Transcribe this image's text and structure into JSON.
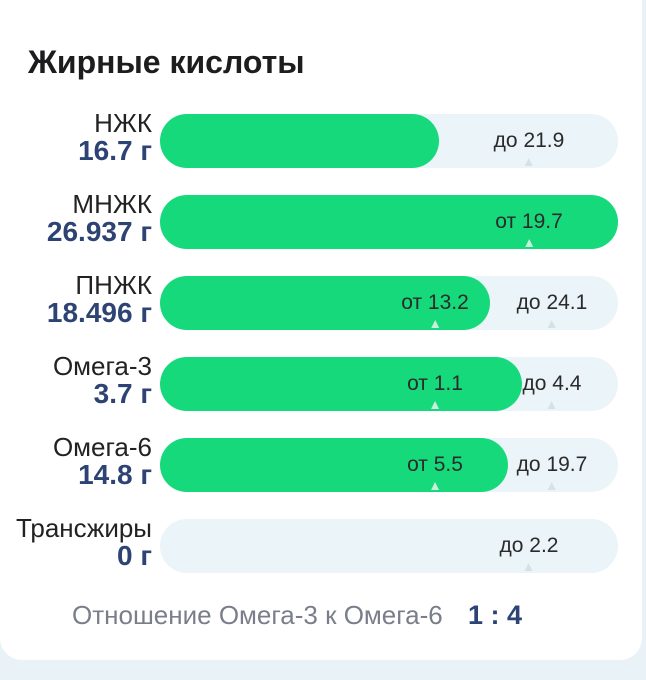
{
  "section_title": "Жирные кислоты",
  "rows": [
    {
      "label": "НЖК",
      "value": "16.7 г",
      "fill_fraction": 0.61,
      "markers": [
        {
          "text": "до 21.9",
          "pos_fraction": 0.805
        }
      ]
    },
    {
      "label": "МНЖК",
      "value": "26.937 г",
      "fill_fraction": 1.0,
      "markers": [
        {
          "text": "от 19.7",
          "pos_fraction": 0.805
        }
      ]
    },
    {
      "label": "ПНЖК",
      "value": "18.496 г",
      "fill_fraction": 0.72,
      "markers": [
        {
          "text": "от 13.2",
          "pos_fraction": 0.6
        },
        {
          "text": "до 24.1",
          "pos_fraction": 0.855
        }
      ]
    },
    {
      "label": "Омега-3",
      "value": "3.7 г",
      "fill_fraction": 0.79,
      "markers": [
        {
          "text": "от 1.1",
          "pos_fraction": 0.6
        },
        {
          "text": "до 4.4",
          "pos_fraction": 0.855
        }
      ]
    },
    {
      "label": "Омега-6",
      "value": "14.8 г",
      "fill_fraction": 0.76,
      "markers": [
        {
          "text": "от 5.5",
          "pos_fraction": 0.6
        },
        {
          "text": "до 19.7",
          "pos_fraction": 0.855
        }
      ]
    },
    {
      "label": "Трансжиры",
      "value": "0 г",
      "fill_fraction": 0,
      "markers": [
        {
          "text": "до 2.2",
          "pos_fraction": 0.805
        }
      ]
    }
  ],
  "ratio": {
    "label": "Отношение Омега-3 к Омега-6",
    "value": "1 : 4"
  },
  "colors": {
    "fill": "#16d97b",
    "track": "#ebf4f8",
    "value_text": "#2d4373",
    "background": "#e9f3f7"
  }
}
